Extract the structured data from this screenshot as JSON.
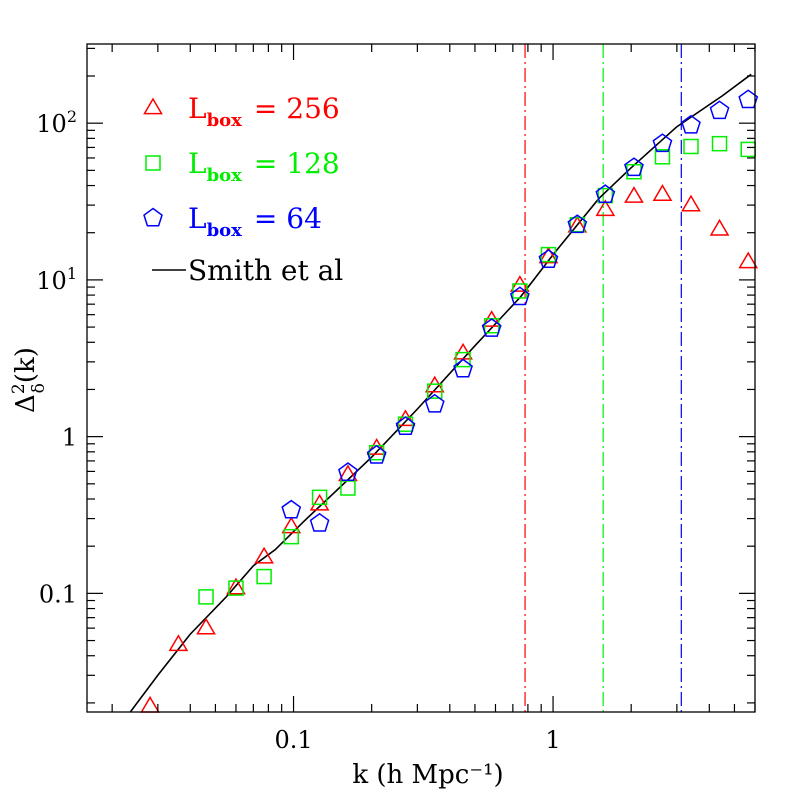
{
  "chart_data": {
    "type": "scatter",
    "xlabel": "k (h Mpc⁻¹)",
    "ylabel_main": "Δ",
    "ylabel_sup": "2",
    "ylabel_sub": "δ",
    "ylabel_tail": "(k)",
    "x_scale": "log",
    "y_scale": "log",
    "xlim": [
      0.016,
      6.0
    ],
    "ylim": [
      0.0175,
      320
    ],
    "x_ticks": [
      {
        "value": 0.1,
        "label": "0.1"
      },
      {
        "value": 1,
        "label": "1"
      }
    ],
    "y_ticks": [
      {
        "value": 0.1,
        "label": "0.1"
      },
      {
        "value": 1,
        "label": "1"
      },
      {
        "value": 10,
        "label_base": "10",
        "label_exp": "1"
      },
      {
        "value": 100,
        "label_base": "10",
        "label_exp": "2"
      }
    ],
    "legend_position": "top-left",
    "series": [
      {
        "name_base": "L",
        "name_sub": "box",
        "name_value": "= 256",
        "marker": "triangle",
        "color": "#ff0000",
        "cutoff_k": 0.78,
        "points": [
          [
            0.028,
            0.019
          ],
          [
            0.036,
            0.047
          ],
          [
            0.046,
            0.06
          ],
          [
            0.06,
            0.108
          ],
          [
            0.077,
            0.17
          ],
          [
            0.098,
            0.265
          ],
          [
            0.126,
            0.37
          ],
          [
            0.162,
            0.57
          ],
          [
            0.209,
            0.84
          ],
          [
            0.27,
            1.28
          ],
          [
            0.35,
            2.1
          ],
          [
            0.45,
            3.4
          ],
          [
            0.58,
            5.5
          ],
          [
            0.745,
            9.2
          ],
          [
            0.96,
            14.0
          ],
          [
            1.24,
            22.0
          ],
          [
            1.59,
            28.0
          ],
          [
            2.05,
            34.0
          ],
          [
            2.64,
            35.0
          ],
          [
            3.4,
            30.0
          ],
          [
            4.38,
            21.0
          ],
          [
            5.65,
            13.0
          ]
        ]
      },
      {
        "name_base": "L",
        "name_sub": "box",
        "name_value": "= 128",
        "marker": "square",
        "color": "#00ee00",
        "cutoff_k": 1.56,
        "points": [
          [
            0.046,
            0.095
          ],
          [
            0.06,
            0.108
          ],
          [
            0.077,
            0.128
          ],
          [
            0.098,
            0.23
          ],
          [
            0.126,
            0.41
          ],
          [
            0.162,
            0.47
          ],
          [
            0.209,
            0.79
          ],
          [
            0.27,
            1.2
          ],
          [
            0.35,
            1.95
          ],
          [
            0.45,
            3.1
          ],
          [
            0.58,
            5.1
          ],
          [
            0.745,
            8.5
          ],
          [
            0.96,
            14.5
          ],
          [
            1.24,
            22.5
          ],
          [
            1.59,
            34.5
          ],
          [
            2.05,
            49.0
          ],
          [
            2.64,
            61.0
          ],
          [
            3.4,
            71.0
          ],
          [
            4.38,
            74.0
          ],
          [
            5.65,
            68.0
          ]
        ]
      },
      {
        "name_base": "L",
        "name_sub": "box",
        "name_value": "= 64",
        "marker": "pentagon",
        "color": "#0000ff",
        "cutoff_k": 3.12,
        "points": [
          [
            0.098,
            0.34
          ],
          [
            0.126,
            0.28
          ],
          [
            0.162,
            0.59
          ],
          [
            0.209,
            0.76
          ],
          [
            0.27,
            1.16
          ],
          [
            0.35,
            1.61
          ],
          [
            0.45,
            2.7
          ],
          [
            0.58,
            4.9
          ],
          [
            0.745,
            7.8
          ],
          [
            0.96,
            13.5
          ],
          [
            1.24,
            22.5
          ],
          [
            1.59,
            35.0
          ],
          [
            2.05,
            52.0
          ],
          [
            2.64,
            74.0
          ],
          [
            3.4,
            97.0
          ],
          [
            4.38,
            120.0
          ],
          [
            5.65,
            141.0
          ]
        ]
      }
    ],
    "reference_line": {
      "name": "Smith et al",
      "color": "#000000",
      "points": [
        [
          0.0235,
          0.0175
        ],
        [
          0.03,
          0.03
        ],
        [
          0.04,
          0.055
        ],
        [
          0.055,
          0.095
        ],
        [
          0.07,
          0.15
        ],
        [
          0.085,
          0.19
        ],
        [
          0.11,
          0.29
        ],
        [
          0.15,
          0.47
        ],
        [
          0.2,
          0.74
        ],
        [
          0.3,
          1.5
        ],
        [
          0.5,
          3.8
        ],
        [
          0.75,
          7.8
        ],
        [
          1.0,
          14.5
        ],
        [
          1.5,
          33.0
        ],
        [
          2.0,
          52.0
        ],
        [
          3.0,
          95.0
        ],
        [
          4.5,
          150.0
        ],
        [
          5.8,
          205.0
        ]
      ]
    }
  }
}
